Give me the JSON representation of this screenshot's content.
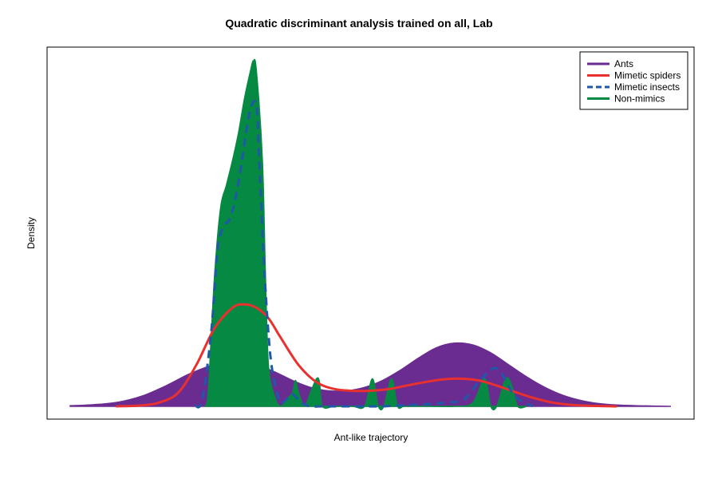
{
  "chart_data": {
    "type": "area",
    "title": "Quadratic discriminant analysis trained on all, Lab",
    "xlabel": "Ant-like trajectory",
    "ylabel": "Density",
    "xlim": [
      0,
      1
    ],
    "ylim": [
      0,
      1
    ],
    "x_ticks": false,
    "y_ticks": false,
    "grid": false,
    "legend_position": "top-right",
    "series": [
      {
        "name": "Ants",
        "style": "filled",
        "color": "#6a2c91",
        "x": [
          0.0,
          0.04,
          0.08,
          0.12,
          0.16,
          0.2,
          0.24,
          0.28,
          0.31,
          0.34,
          0.37,
          0.4,
          0.43,
          0.46,
          0.49,
          0.52,
          0.55,
          0.58,
          0.61,
          0.64,
          0.67,
          0.7,
          0.73,
          0.76,
          0.79,
          0.82,
          0.85,
          0.88,
          0.91,
          0.94,
          0.97,
          1.0
        ],
        "y": [
          0.002,
          0.005,
          0.012,
          0.03,
          0.06,
          0.095,
          0.12,
          0.127,
          0.12,
          0.1,
          0.075,
          0.055,
          0.045,
          0.045,
          0.055,
          0.075,
          0.105,
          0.14,
          0.17,
          0.183,
          0.178,
          0.155,
          0.12,
          0.085,
          0.055,
          0.032,
          0.017,
          0.008,
          0.004,
          0.002,
          0.001,
          0.0
        ]
      },
      {
        "name": "Mimetic spiders",
        "style": "line",
        "color": "#e8312e",
        "x": [
          0.076,
          0.12,
          0.15,
          0.18,
          0.21,
          0.24,
          0.27,
          0.29,
          0.31,
          0.33,
          0.35,
          0.38,
          0.41,
          0.44,
          0.47,
          0.5,
          0.53,
          0.56,
          0.59,
          0.62,
          0.65,
          0.68,
          0.71,
          0.74,
          0.77,
          0.8,
          0.83,
          0.86,
          0.91
        ],
        "y": [
          0.0,
          0.003,
          0.012,
          0.04,
          0.12,
          0.225,
          0.285,
          0.295,
          0.285,
          0.255,
          0.2,
          0.12,
          0.07,
          0.05,
          0.045,
          0.045,
          0.05,
          0.06,
          0.07,
          0.078,
          0.08,
          0.075,
          0.06,
          0.042,
          0.025,
          0.012,
          0.005,
          0.002,
          0.0
        ]
      },
      {
        "name": "Mimetic insects",
        "style": "dashed",
        "color": "#1f58a8",
        "x": [
          0.208,
          0.22,
          0.235,
          0.245,
          0.255,
          0.265,
          0.275,
          0.285,
          0.29,
          0.3,
          0.31,
          0.315,
          0.323,
          0.333,
          0.343,
          0.35,
          0.36,
          0.37,
          0.385,
          0.4,
          0.42,
          0.45,
          0.49,
          0.52,
          0.55,
          0.58,
          0.62,
          0.655,
          0.68,
          0.71,
          0.74,
          0.77
        ],
        "y": [
          0.0,
          0.02,
          0.22,
          0.45,
          0.52,
          0.54,
          0.6,
          0.7,
          0.76,
          0.86,
          0.87,
          0.7,
          0.4,
          0.15,
          0.05,
          0.01,
          0.02,
          0.035,
          0.01,
          0.0,
          0.0,
          0.0,
          0.0,
          0.0,
          0.003,
          0.005,
          0.01,
          0.02,
          0.07,
          0.11,
          0.03,
          0.0
        ]
      },
      {
        "name": "Non-mimics",
        "style": "filled",
        "color": "#068a43",
        "x": [
          0.225,
          0.23,
          0.24,
          0.25,
          0.26,
          0.27,
          0.28,
          0.29,
          0.3,
          0.305,
          0.31,
          0.32,
          0.325,
          0.33,
          0.34,
          0.35,
          0.36,
          0.37,
          0.375,
          0.38,
          0.39,
          0.4,
          0.41,
          0.415,
          0.42,
          0.44,
          0.47,
          0.49,
          0.503,
          0.513,
          0.522,
          0.535,
          0.545,
          0.555,
          0.57,
          0.6,
          0.64,
          0.67,
          0.69,
          0.7,
          0.71,
          0.725,
          0.735,
          0.745,
          0.76
        ],
        "y": [
          0.0,
          0.05,
          0.37,
          0.57,
          0.64,
          0.71,
          0.79,
          0.89,
          0.97,
          1.0,
          0.97,
          0.71,
          0.38,
          0.12,
          0.03,
          0.0,
          0.02,
          0.04,
          0.075,
          0.04,
          0.0,
          0.04,
          0.08,
          0.07,
          0.0,
          0.0,
          0.0,
          0.0,
          0.08,
          0.0,
          0.0,
          0.08,
          0.0,
          0.0,
          0.0,
          0.0,
          0.0,
          0.01,
          0.08,
          0.0,
          0.0,
          0.08,
          0.06,
          0.0,
          0.0
        ]
      }
    ]
  }
}
